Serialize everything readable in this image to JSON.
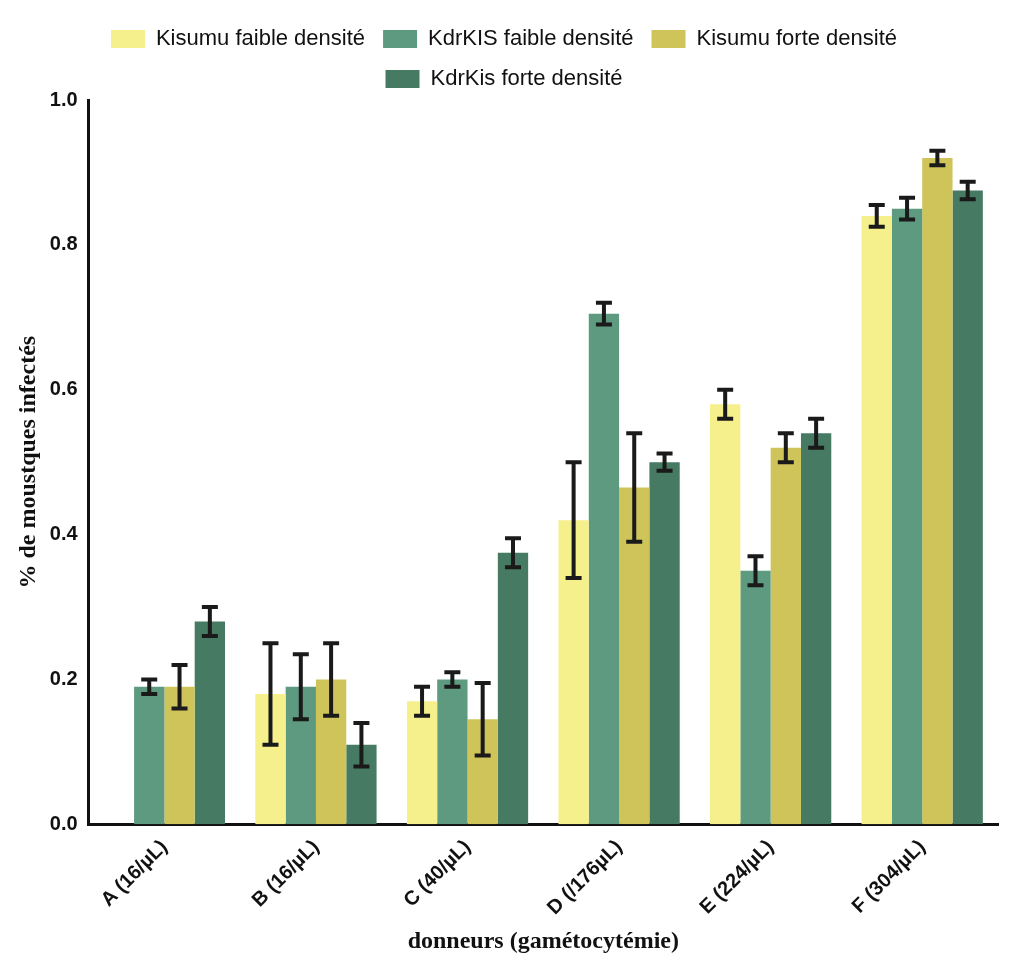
{
  "chart_data": {
    "type": "bar",
    "xlabel": "donneurs (gamétocytémie)",
    "ylabel": "% de moustques infectés",
    "categories": [
      "A (16/µL)",
      "B (16/µL)",
      "C (40/µL)",
      "D (/176µL)",
      "E (224/µL)",
      "F (304/µL)"
    ],
    "series": [
      {
        "name": "Kisumu faible densité",
        "color": "#f5ef8c",
        "values": [
          null,
          0.18,
          0.17,
          0.42,
          0.58,
          0.84
        ],
        "errors": [
          null,
          0.07,
          0.02,
          0.08,
          0.02,
          0.015
        ]
      },
      {
        "name": "KdrKIS faible densité",
        "color": "#5e9a80",
        "values": [
          0.19,
          0.19,
          0.2,
          0.705,
          0.35,
          0.85
        ],
        "errors": [
          0.01,
          0.045,
          0.01,
          0.015,
          0.02,
          0.015
        ]
      },
      {
        "name": "Kisumu forte densité",
        "color": "#cfc45a",
        "values": [
          0.19,
          0.2,
          0.145,
          0.465,
          0.52,
          0.92
        ],
        "errors": [
          0.03,
          0.05,
          0.05,
          0.075,
          0.02,
          0.01
        ]
      },
      {
        "name": "KdrKis forte densité",
        "color": "#467a63",
        "values": [
          0.28,
          0.11,
          0.375,
          0.5,
          0.54,
          0.875
        ],
        "errors": [
          0.02,
          0.03,
          0.02,
          0.012,
          0.02,
          0.012
        ]
      }
    ],
    "ylim": [
      0,
      1
    ],
    "yticks": [
      {
        "value": 0,
        "label": "0.0"
      },
      {
        "value": 0.2,
        "label": "0.2"
      },
      {
        "value": 0.4,
        "label": "0.4"
      },
      {
        "value": 0.6,
        "label": "0.6"
      },
      {
        "value": 0.8,
        "label": "0.8"
      },
      {
        "value": 1,
        "label": "1.0"
      }
    ],
    "grid": false,
    "legend": "top"
  }
}
